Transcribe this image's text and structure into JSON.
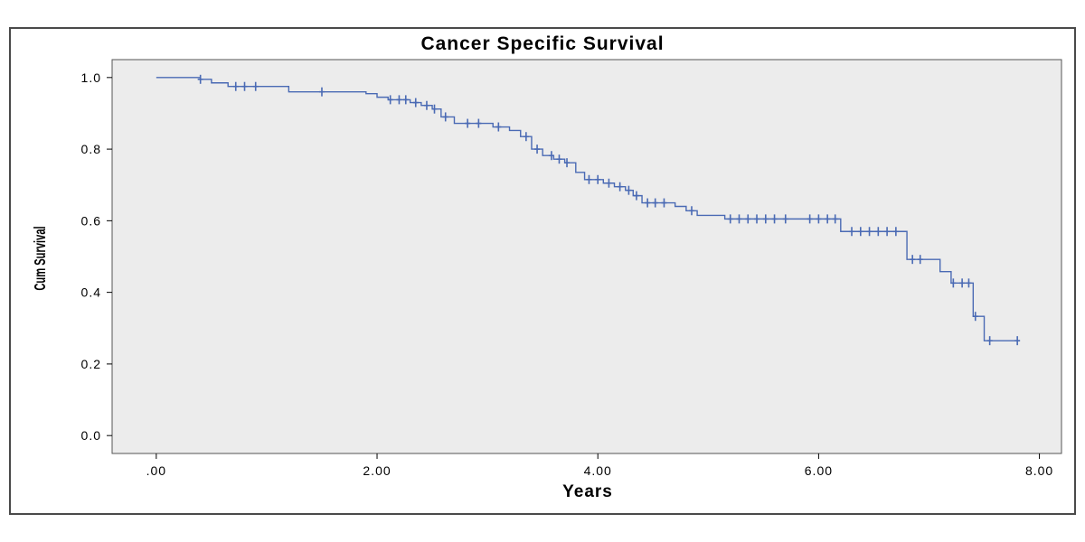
{
  "chart_data": {
    "type": "line",
    "title": "Cancer Specific Survival",
    "xlabel": "Years",
    "ylabel": "Cum Survival",
    "xlim": [
      -0.4,
      8.2
    ],
    "ylim": [
      -0.05,
      1.05
    ],
    "x_ticks": [
      0,
      2,
      4,
      6,
      8
    ],
    "x_tick_labels": [
      ".00",
      "2.00",
      "4.00",
      "6.00",
      "8.00"
    ],
    "y_ticks": [
      0,
      0.2,
      0.4,
      0.6,
      0.8,
      1.0
    ],
    "y_tick_labels": [
      "0.0",
      "0.2",
      "0.4",
      "0.6",
      "0.8",
      "1.0"
    ],
    "grid": false,
    "colors": {
      "line": "#4a6ab4",
      "plot_background": "#ececec",
      "axis": "#000000"
    },
    "series": [
      {
        "step": true,
        "points": [
          [
            0.0,
            1.0
          ],
          [
            0.4,
            1.0
          ],
          [
            0.4,
            0.995
          ],
          [
            0.5,
            0.995
          ],
          [
            0.5,
            0.985
          ],
          [
            0.65,
            0.985
          ],
          [
            0.65,
            0.975
          ],
          [
            1.2,
            0.975
          ],
          [
            1.2,
            0.96
          ],
          [
            1.9,
            0.96
          ],
          [
            1.9,
            0.955
          ],
          [
            2.0,
            0.955
          ],
          [
            2.0,
            0.945
          ],
          [
            2.1,
            0.945
          ],
          [
            2.1,
            0.938
          ],
          [
            2.3,
            0.938
          ],
          [
            2.3,
            0.93
          ],
          [
            2.4,
            0.93
          ],
          [
            2.4,
            0.922
          ],
          [
            2.5,
            0.922
          ],
          [
            2.5,
            0.912
          ],
          [
            2.58,
            0.912
          ],
          [
            2.58,
            0.89
          ],
          [
            2.7,
            0.89
          ],
          [
            2.7,
            0.872
          ],
          [
            3.05,
            0.872
          ],
          [
            3.05,
            0.862
          ],
          [
            3.2,
            0.862
          ],
          [
            3.2,
            0.852
          ],
          [
            3.3,
            0.852
          ],
          [
            3.3,
            0.835
          ],
          [
            3.4,
            0.835
          ],
          [
            3.4,
            0.8
          ],
          [
            3.5,
            0.8
          ],
          [
            3.5,
            0.782
          ],
          [
            3.6,
            0.782
          ],
          [
            3.6,
            0.772
          ],
          [
            3.7,
            0.772
          ],
          [
            3.7,
            0.762
          ],
          [
            3.8,
            0.762
          ],
          [
            3.8,
            0.735
          ],
          [
            3.88,
            0.735
          ],
          [
            3.88,
            0.715
          ],
          [
            4.05,
            0.715
          ],
          [
            4.05,
            0.705
          ],
          [
            4.15,
            0.705
          ],
          [
            4.15,
            0.695
          ],
          [
            4.25,
            0.695
          ],
          [
            4.25,
            0.685
          ],
          [
            4.32,
            0.685
          ],
          [
            4.32,
            0.67
          ],
          [
            4.4,
            0.67
          ],
          [
            4.4,
            0.65
          ],
          [
            4.7,
            0.65
          ],
          [
            4.7,
            0.64
          ],
          [
            4.8,
            0.64
          ],
          [
            4.8,
            0.628
          ],
          [
            4.9,
            0.628
          ],
          [
            4.9,
            0.615
          ],
          [
            5.15,
            0.615
          ],
          [
            5.15,
            0.605
          ],
          [
            6.2,
            0.605
          ],
          [
            6.2,
            0.57
          ],
          [
            6.8,
            0.57
          ],
          [
            6.8,
            0.492
          ],
          [
            7.1,
            0.492
          ],
          [
            7.1,
            0.458
          ],
          [
            7.2,
            0.458
          ],
          [
            7.2,
            0.426
          ],
          [
            7.4,
            0.426
          ],
          [
            7.4,
            0.333
          ],
          [
            7.5,
            0.333
          ],
          [
            7.5,
            0.265
          ],
          [
            7.82,
            0.265
          ]
        ],
        "censored": [
          [
            0.4,
            0.995
          ],
          [
            0.72,
            0.975
          ],
          [
            0.8,
            0.975
          ],
          [
            0.9,
            0.975
          ],
          [
            1.5,
            0.96
          ],
          [
            2.12,
            0.938
          ],
          [
            2.2,
            0.938
          ],
          [
            2.26,
            0.938
          ],
          [
            2.35,
            0.93
          ],
          [
            2.45,
            0.922
          ],
          [
            2.52,
            0.912
          ],
          [
            2.62,
            0.89
          ],
          [
            2.82,
            0.872
          ],
          [
            2.92,
            0.872
          ],
          [
            3.1,
            0.862
          ],
          [
            3.35,
            0.835
          ],
          [
            3.45,
            0.8
          ],
          [
            3.58,
            0.782
          ],
          [
            3.65,
            0.772
          ],
          [
            3.72,
            0.762
          ],
          [
            3.92,
            0.715
          ],
          [
            4.0,
            0.715
          ],
          [
            4.1,
            0.705
          ],
          [
            4.2,
            0.695
          ],
          [
            4.28,
            0.685
          ],
          [
            4.35,
            0.67
          ],
          [
            4.45,
            0.65
          ],
          [
            4.52,
            0.65
          ],
          [
            4.6,
            0.65
          ],
          [
            4.85,
            0.628
          ],
          [
            5.2,
            0.605
          ],
          [
            5.28,
            0.605
          ],
          [
            5.36,
            0.605
          ],
          [
            5.44,
            0.605
          ],
          [
            5.52,
            0.605
          ],
          [
            5.6,
            0.605
          ],
          [
            5.7,
            0.605
          ],
          [
            5.92,
            0.605
          ],
          [
            6.0,
            0.605
          ],
          [
            6.08,
            0.605
          ],
          [
            6.15,
            0.605
          ],
          [
            6.3,
            0.57
          ],
          [
            6.38,
            0.57
          ],
          [
            6.46,
            0.57
          ],
          [
            6.54,
            0.57
          ],
          [
            6.62,
            0.57
          ],
          [
            6.7,
            0.57
          ],
          [
            6.85,
            0.492
          ],
          [
            6.92,
            0.492
          ],
          [
            7.22,
            0.426
          ],
          [
            7.3,
            0.426
          ],
          [
            7.36,
            0.426
          ],
          [
            7.42,
            0.333
          ],
          [
            7.55,
            0.265
          ],
          [
            7.8,
            0.265
          ]
        ]
      }
    ]
  }
}
